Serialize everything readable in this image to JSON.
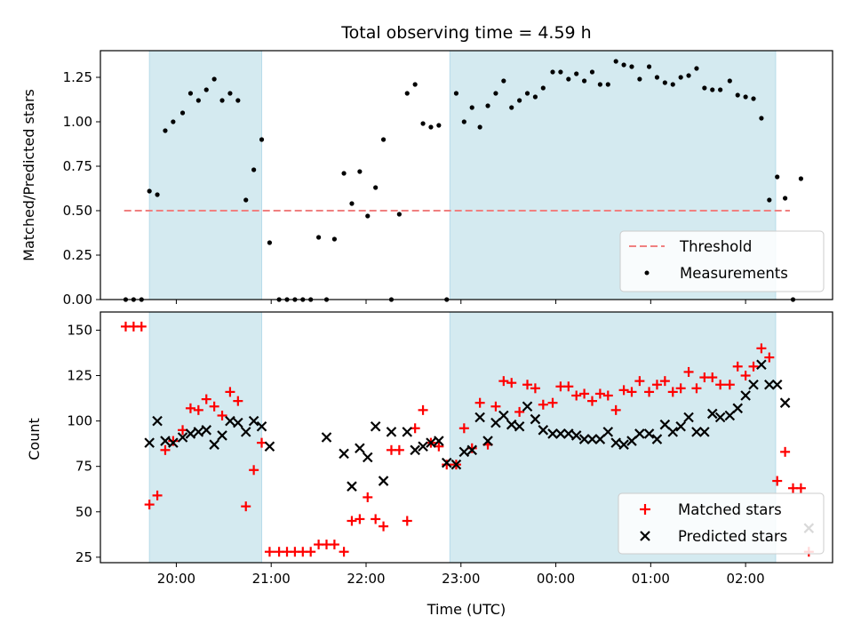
{
  "chart_data": [
    {
      "type": "scatter",
      "title": "Total observing time = 4.59 h",
      "xlabel": "",
      "ylabel": "Matched/Predicted stars",
      "xlim": [
        "19:12",
        "02:55"
      ],
      "ylim": [
        0,
        1.4
      ],
      "yticks": [
        "0.00",
        "0.25",
        "0.50",
        "0.75",
        "1.00",
        "1.25"
      ],
      "legend": {
        "position": "lower-right",
        "entries": [
          "Threshold",
          "Measurements"
        ]
      },
      "observing_windows": [
        [
          "19:43",
          "20:54"
        ],
        [
          "22:53",
          "02:19"
        ]
      ],
      "threshold": {
        "name": "Threshold",
        "value": 0.5,
        "x_range": [
          "19:27",
          "02:28"
        ],
        "color": "#f08080"
      },
      "series": [
        {
          "name": "Measurements",
          "color": "#000000",
          "points": [
            [
              "19:28",
              0.0
            ],
            [
              "19:33",
              0.0
            ],
            [
              "19:38",
              0.0
            ],
            [
              "19:43",
              0.61
            ],
            [
              "19:48",
              0.59
            ],
            [
              "19:53",
              0.95
            ],
            [
              "19:58",
              1.0
            ],
            [
              "20:04",
              1.05
            ],
            [
              "20:09",
              1.16
            ],
            [
              "20:14",
              1.12
            ],
            [
              "20:19",
              1.18
            ],
            [
              "20:24",
              1.24
            ],
            [
              "20:29",
              1.12
            ],
            [
              "20:34",
              1.16
            ],
            [
              "20:39",
              1.12
            ],
            [
              "20:44",
              0.56
            ],
            [
              "20:49",
              0.73
            ],
            [
              "20:54",
              0.9
            ],
            [
              "20:59",
              0.32
            ],
            [
              "21:05",
              0.0
            ],
            [
              "21:10",
              0.0
            ],
            [
              "21:15",
              0.0
            ],
            [
              "21:20",
              0.0
            ],
            [
              "21:25",
              0.0
            ],
            [
              "21:30",
              0.35
            ],
            [
              "21:35",
              0.0
            ],
            [
              "21:40",
              0.34
            ],
            [
              "21:46",
              0.71
            ],
            [
              "21:51",
              0.54
            ],
            [
              "21:56",
              0.72
            ],
            [
              "22:01",
              0.47
            ],
            [
              "22:06",
              0.63
            ],
            [
              "22:11",
              0.9
            ],
            [
              "22:16",
              0.0
            ],
            [
              "22:21",
              0.48
            ],
            [
              "22:26",
              1.16
            ],
            [
              "22:31",
              1.21
            ],
            [
              "22:36",
              0.99
            ],
            [
              "22:41",
              0.97
            ],
            [
              "22:46",
              0.98
            ],
            [
              "22:51",
              0.0
            ],
            [
              "22:57",
              1.16
            ],
            [
              "23:02",
              1.0
            ],
            [
              "23:07",
              1.08
            ],
            [
              "23:12",
              0.97
            ],
            [
              "23:17",
              1.09
            ],
            [
              "23:22",
              1.16
            ],
            [
              "23:27",
              1.23
            ],
            [
              "23:32",
              1.08
            ],
            [
              "23:37",
              1.12
            ],
            [
              "23:42",
              1.16
            ],
            [
              "23:47",
              1.14
            ],
            [
              "23:52",
              1.19
            ],
            [
              "23:58",
              1.28
            ],
            [
              "00:03",
              1.28
            ],
            [
              "00:08",
              1.24
            ],
            [
              "00:13",
              1.27
            ],
            [
              "00:18",
              1.23
            ],
            [
              "00:23",
              1.28
            ],
            [
              "00:28",
              1.21
            ],
            [
              "00:33",
              1.21
            ],
            [
              "00:38",
              1.34
            ],
            [
              "00:43",
              1.32
            ],
            [
              "00:48",
              1.31
            ],
            [
              "00:53",
              1.24
            ],
            [
              "00:59",
              1.31
            ],
            [
              "01:04",
              1.25
            ],
            [
              "01:09",
              1.22
            ],
            [
              "01:14",
              1.21
            ],
            [
              "01:19",
              1.25
            ],
            [
              "01:24",
              1.26
            ],
            [
              "01:29",
              1.3
            ],
            [
              "01:34",
              1.19
            ],
            [
              "01:39",
              1.18
            ],
            [
              "01:44",
              1.18
            ],
            [
              "01:50",
              1.23
            ],
            [
              "01:55",
              1.15
            ],
            [
              "02:00",
              1.14
            ],
            [
              "02:05",
              1.13
            ],
            [
              "02:10",
              1.02
            ],
            [
              "02:15",
              0.56
            ],
            [
              "02:20",
              0.69
            ],
            [
              "02:25",
              0.57
            ],
            [
              "02:30",
              0.0
            ],
            [
              "02:35",
              0.68
            ]
          ]
        }
      ]
    },
    {
      "type": "scatter",
      "title": "",
      "xlabel": "Time (UTC)",
      "ylabel": "Count",
      "xlim": [
        "19:12",
        "02:55"
      ],
      "ylim": [
        22,
        160
      ],
      "xticks": [
        "20:00",
        "21:00",
        "22:00",
        "23:00",
        "00:00",
        "01:00",
        "02:00"
      ],
      "yticks": [
        "25",
        "50",
        "75",
        "100",
        "125",
        "150"
      ],
      "legend": {
        "position": "lower-right",
        "entries": [
          "Matched stars",
          "Predicted stars"
        ]
      },
      "observing_windows": [
        [
          "19:43",
          "20:54"
        ],
        [
          "22:53",
          "02:19"
        ]
      ],
      "series": [
        {
          "name": "Matched stars",
          "marker": "plus",
          "color": "#ff0000",
          "points": [
            [
              "19:28",
              152
            ],
            [
              "19:33",
              152
            ],
            [
              "19:38",
              152
            ],
            [
              "19:43",
              54
            ],
            [
              "19:48",
              59
            ],
            [
              "19:53",
              84
            ],
            [
              "19:58",
              89
            ],
            [
              "20:04",
              95
            ],
            [
              "20:09",
              107
            ],
            [
              "20:14",
              106
            ],
            [
              "20:19",
              112
            ],
            [
              "20:24",
              108
            ],
            [
              "20:29",
              103
            ],
            [
              "20:34",
              116
            ],
            [
              "20:39",
              111
            ],
            [
              "20:44",
              53
            ],
            [
              "20:49",
              73
            ],
            [
              "20:54",
              88
            ],
            [
              "20:59",
              28
            ],
            [
              "21:05",
              28
            ],
            [
              "21:10",
              28
            ],
            [
              "21:15",
              28
            ],
            [
              "21:20",
              28
            ],
            [
              "21:25",
              28
            ],
            [
              "21:30",
              32
            ],
            [
              "21:35",
              32
            ],
            [
              "21:40",
              32
            ],
            [
              "21:46",
              28
            ],
            [
              "21:51",
              45
            ],
            [
              "21:56",
              46
            ],
            [
              "22:01",
              58
            ],
            [
              "22:06",
              46
            ],
            [
              "22:11",
              42
            ],
            [
              "22:16",
              84
            ],
            [
              "22:21",
              84
            ],
            [
              "22:26",
              45
            ],
            [
              "22:31",
              96
            ],
            [
              "22:36",
              106
            ],
            [
              "22:41",
              88
            ],
            [
              "22:46",
              86
            ],
            [
              "22:51",
              76
            ],
            [
              "22:57",
              76
            ],
            [
              "23:02",
              96
            ],
            [
              "23:07",
              85
            ],
            [
              "23:12",
              110
            ],
            [
              "23:17",
              87
            ],
            [
              "23:22",
              108
            ],
            [
              "23:27",
              122
            ],
            [
              "23:32",
              121
            ],
            [
              "23:37",
              105
            ],
            [
              "23:42",
              120
            ],
            [
              "23:47",
              118
            ],
            [
              "23:52",
              109
            ],
            [
              "23:58",
              110
            ],
            [
              "00:03",
              119
            ],
            [
              "00:08",
              119
            ],
            [
              "00:13",
              114
            ],
            [
              "00:18",
              115
            ],
            [
              "00:23",
              111
            ],
            [
              "00:28",
              115
            ],
            [
              "00:33",
              114
            ],
            [
              "00:38",
              106
            ],
            [
              "00:43",
              117
            ],
            [
              "00:48",
              116
            ],
            [
              "00:53",
              122
            ],
            [
              "00:59",
              116
            ],
            [
              "01:04",
              120
            ],
            [
              "01:09",
              122
            ],
            [
              "01:14",
              116
            ],
            [
              "01:19",
              118
            ],
            [
              "01:24",
              127
            ],
            [
              "01:29",
              118
            ],
            [
              "01:34",
              124
            ],
            [
              "01:39",
              124
            ],
            [
              "01:44",
              120
            ],
            [
              "01:50",
              120
            ],
            [
              "01:55",
              130
            ],
            [
              "02:00",
              125
            ],
            [
              "02:05",
              130
            ],
            [
              "02:10",
              140
            ],
            [
              "02:15",
              135
            ],
            [
              "02:20",
              67
            ],
            [
              "02:25",
              83
            ],
            [
              "02:30",
              63
            ],
            [
              "02:35",
              63
            ],
            [
              "02:40",
              28
            ]
          ]
        },
        {
          "name": "Predicted stars",
          "marker": "x",
          "color": "#000000",
          "points": [
            [
              "19:43",
              88
            ],
            [
              "19:48",
              100
            ],
            [
              "19:53",
              89
            ],
            [
              "19:58",
              88
            ],
            [
              "20:04",
              91
            ],
            [
              "20:09",
              93
            ],
            [
              "20:14",
              94
            ],
            [
              "20:19",
              95
            ],
            [
              "20:24",
              87
            ],
            [
              "20:29",
              92
            ],
            [
              "20:34",
              100
            ],
            [
              "20:39",
              99
            ],
            [
              "20:44",
              94
            ],
            [
              "20:49",
              100
            ],
            [
              "20:54",
              97
            ],
            [
              "20:59",
              86
            ],
            [
              "21:35",
              91
            ],
            [
              "21:46",
              82
            ],
            [
              "21:51",
              64
            ],
            [
              "21:56",
              85
            ],
            [
              "22:01",
              80
            ],
            [
              "22:06",
              97
            ],
            [
              "22:11",
              67
            ],
            [
              "22:16",
              94
            ],
            [
              "22:26",
              94
            ],
            [
              "22:31",
              84
            ],
            [
              "22:36",
              86
            ],
            [
              "22:41",
              88
            ],
            [
              "22:46",
              89
            ],
            [
              "22:51",
              77
            ],
            [
              "22:57",
              76
            ],
            [
              "23:02",
              83
            ],
            [
              "23:07",
              84
            ],
            [
              "23:12",
              102
            ],
            [
              "23:17",
              89
            ],
            [
              "23:22",
              99
            ],
            [
              "23:27",
              103
            ],
            [
              "23:32",
              98
            ],
            [
              "23:37",
              97
            ],
            [
              "23:42",
              108
            ],
            [
              "23:47",
              101
            ],
            [
              "23:52",
              95
            ],
            [
              "23:58",
              93
            ],
            [
              "00:03",
              93
            ],
            [
              "00:08",
              93
            ],
            [
              "00:13",
              92
            ],
            [
              "00:18",
              90
            ],
            [
              "00:23",
              90
            ],
            [
              "00:28",
              90
            ],
            [
              "00:33",
              94
            ],
            [
              "00:38",
              88
            ],
            [
              "00:43",
              87
            ],
            [
              "00:48",
              89
            ],
            [
              "00:53",
              93
            ],
            [
              "00:59",
              93
            ],
            [
              "01:04",
              90
            ],
            [
              "01:09",
              98
            ],
            [
              "01:14",
              94
            ],
            [
              "01:19",
              97
            ],
            [
              "01:24",
              102
            ],
            [
              "01:29",
              94
            ],
            [
              "01:34",
              94
            ],
            [
              "01:39",
              104
            ],
            [
              "01:44",
              102
            ],
            [
              "01:50",
              103
            ],
            [
              "01:55",
              107
            ],
            [
              "02:00",
              114
            ],
            [
              "02:05",
              120
            ],
            [
              "02:10",
              131
            ],
            [
              "02:15",
              120
            ],
            [
              "02:20",
              120
            ],
            [
              "02:25",
              110
            ],
            [
              "02:40",
              41
            ]
          ]
        }
      ]
    }
  ],
  "colors": {
    "window_fill": "#d4eaf0",
    "window_edge": "#b8dcea",
    "threshold": "#f08080"
  }
}
